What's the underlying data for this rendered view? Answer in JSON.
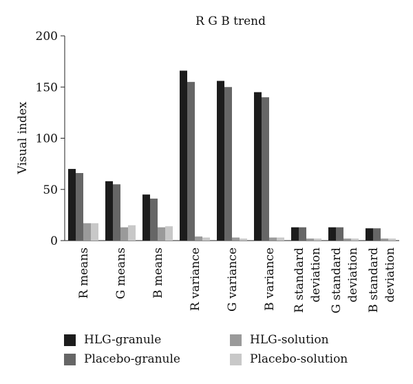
{
  "chart_data": {
    "type": "bar",
    "title": "R G B trend",
    "xlabel": "",
    "ylabel": "Visual index",
    "ylim": [
      0,
      200
    ],
    "yticks": [
      0,
      50,
      100,
      150,
      200
    ],
    "grid": false,
    "legend_position": "bottom",
    "categories": [
      [
        "R means"
      ],
      [
        "G means"
      ],
      [
        "B means"
      ],
      [
        "R variance"
      ],
      [
        "G variance"
      ],
      [
        "B variance"
      ],
      [
        "R standard",
        "deviation"
      ],
      [
        "G standard",
        "deviation"
      ],
      [
        "B standard",
        "deviation"
      ]
    ],
    "series": [
      {
        "name": "HLG-granule",
        "color": "#1c1c1c",
        "values": [
          70,
          58,
          45,
          166,
          156,
          145,
          13,
          13,
          12
        ]
      },
      {
        "name": "Placebo-granule",
        "color": "#666666",
        "values": [
          66,
          55,
          41,
          155,
          150,
          140,
          13,
          13,
          12
        ]
      },
      {
        "name": "HLG-solution",
        "color": "#9a9a9a",
        "values": [
          17,
          13,
          13,
          4,
          3,
          3,
          2,
          2,
          2
        ]
      },
      {
        "name": "Placebo-solution",
        "color": "#c8c8c8",
        "values": [
          17,
          15,
          14,
          3,
          2,
          3,
          2,
          2,
          2
        ]
      }
    ]
  }
}
